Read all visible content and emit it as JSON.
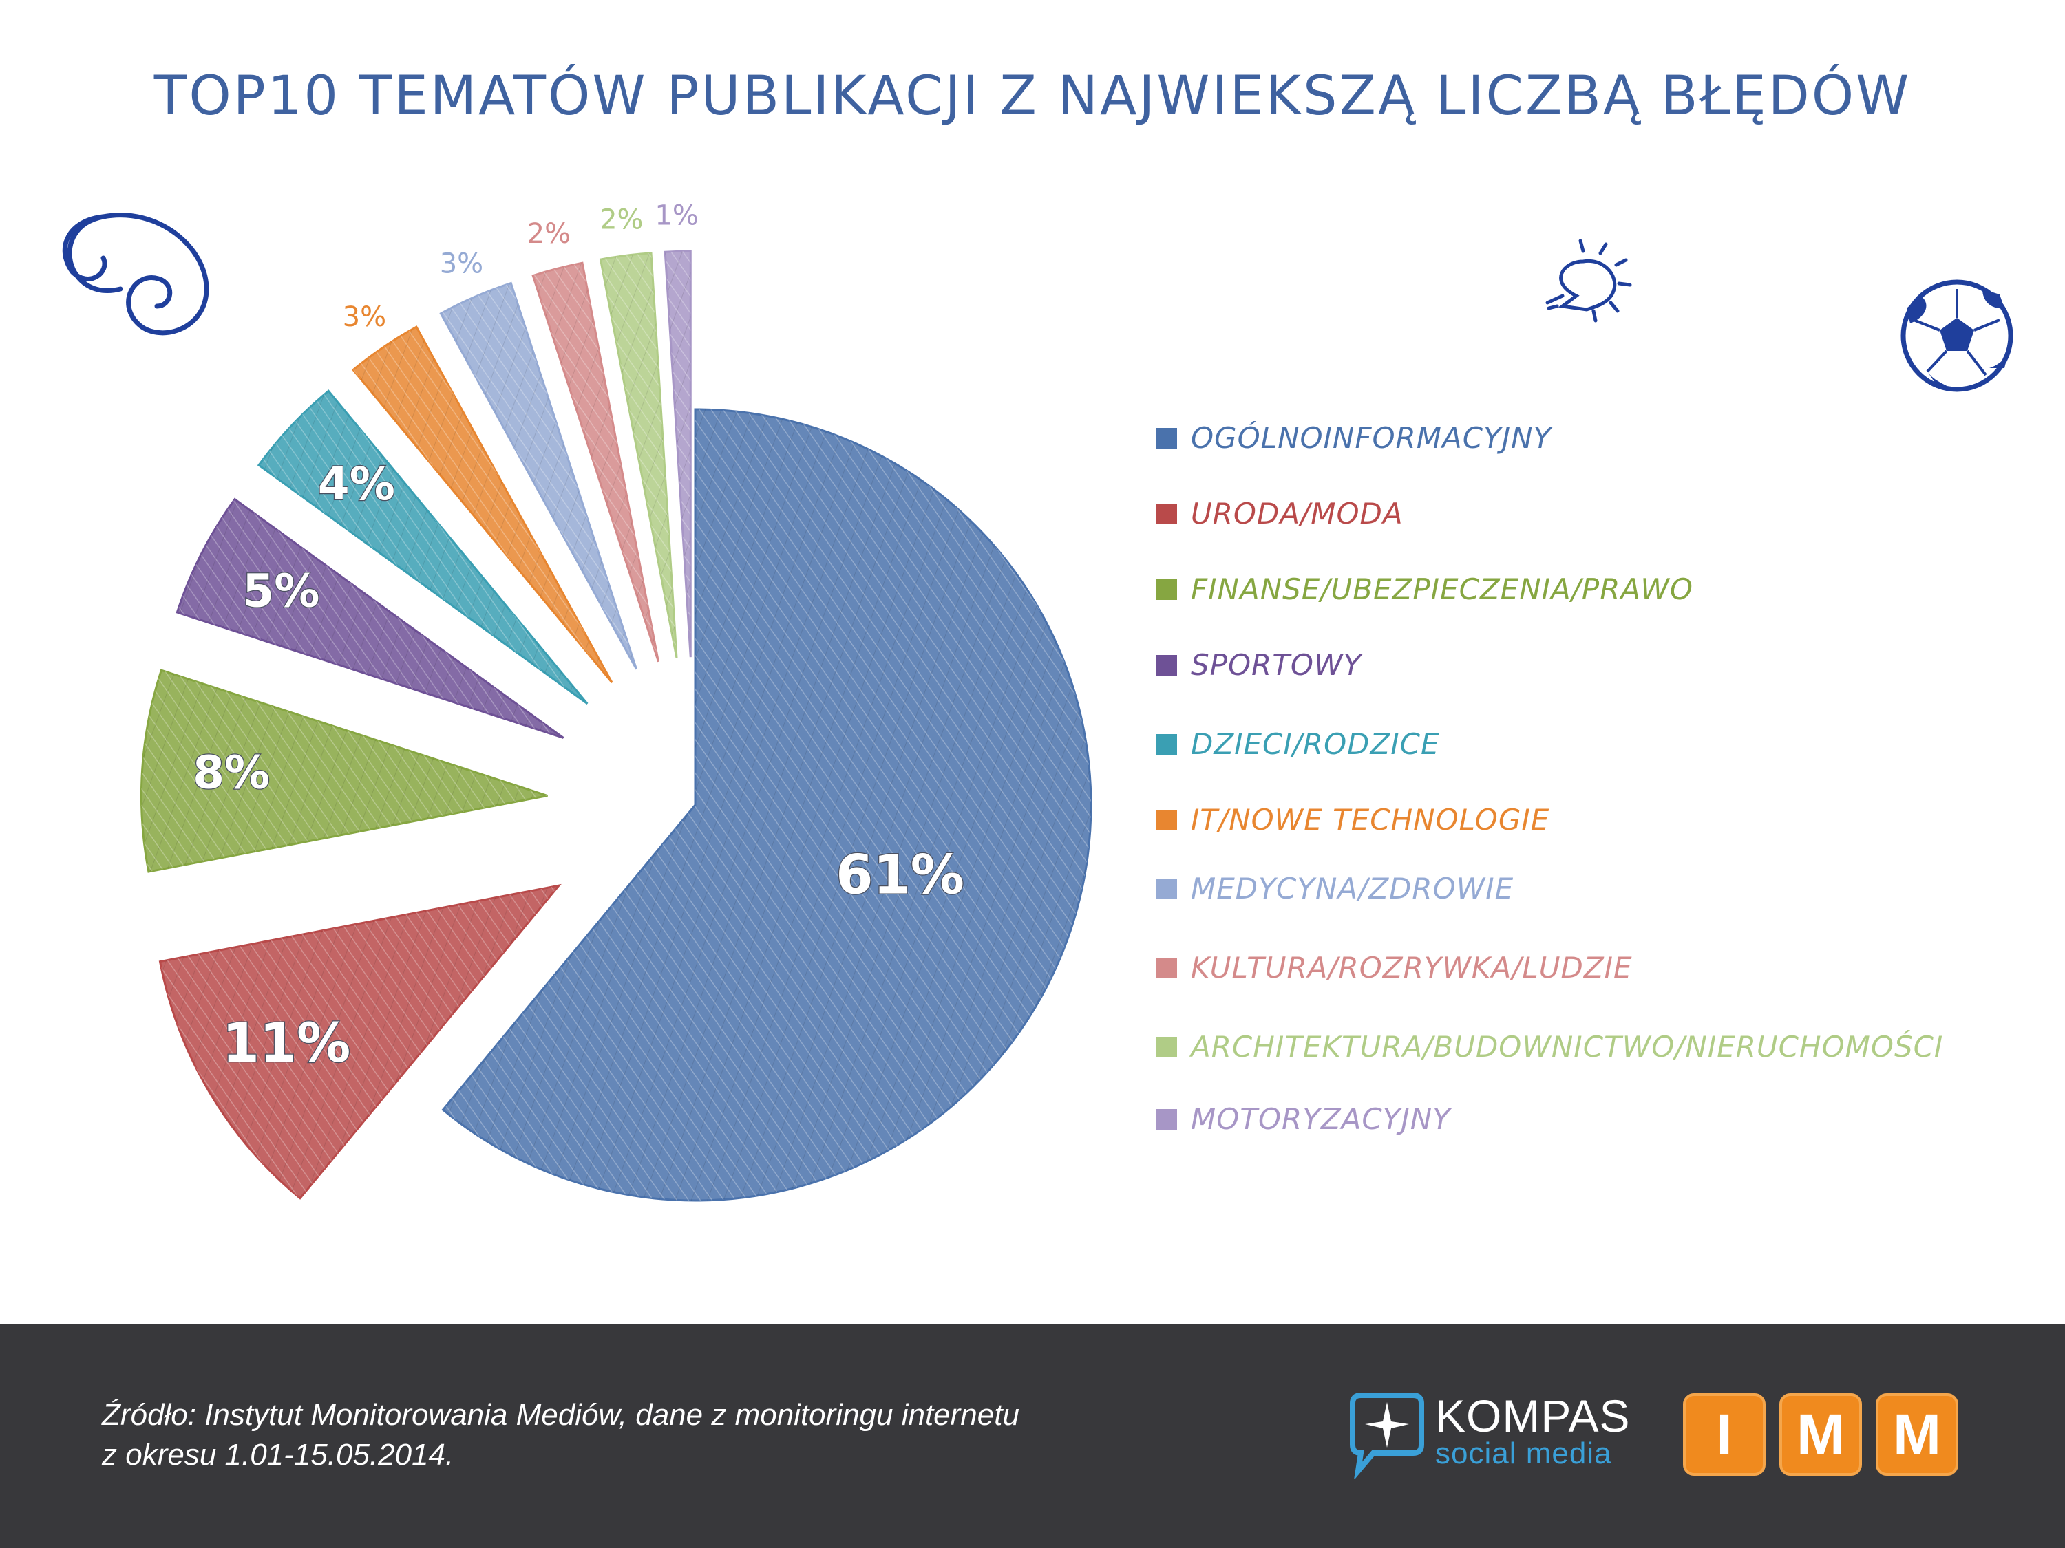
{
  "title": "TOP10 TEMATÓW PUBLIKACJI Z NAJWIEKSZĄ LICZBĄ BŁĘDÓW",
  "chart_data": {
    "type": "pie",
    "title": "TOP10 TEMATÓW PUBLIKACJI Z NAJWIEKSZĄ LICZBĄ BŁĘDÓW",
    "legend_position": "right",
    "slices": [
      {
        "label": "OGÓLNOINFORMACYJNY",
        "value": 61,
        "value_label": "61%",
        "color": "#4a72ac"
      },
      {
        "label": "URODA/MODA",
        "value": 11,
        "value_label": "11%",
        "color": "#b94a4a"
      },
      {
        "label": "FINANSE/UBEZPIECZENIA/PRAWO",
        "value": 8,
        "value_label": "8%",
        "color": "#86a641"
      },
      {
        "label": "SPORTOWY",
        "value": 5,
        "value_label": "5%",
        "color": "#6e5196"
      },
      {
        "label": "DZIECI/RODZICE",
        "value": 4,
        "value_label": "4%",
        "color": "#3a9fb3"
      },
      {
        "label": "IT/NOWE TECHNOLOGIE",
        "value": 3,
        "value_label": "3%",
        "color": "#e88630"
      },
      {
        "label": "MEDYCYNA/ZDROWIE",
        "value": 3,
        "value_label": "3%",
        "color": "#95aad4"
      },
      {
        "label": "KULTURA/ROZRYWKA/LUDZIE",
        "value": 2,
        "value_label": "2%",
        "color": "#d48a8a"
      },
      {
        "label": "ARCHITEKTURA/BUDOWNICTWO/NIERUCHOMOŚCI",
        "value": 2,
        "value_label": "2%",
        "color": "#b0cc86"
      },
      {
        "label": "MOTORYZACYJNY",
        "value": 1,
        "value_label": "1%",
        "color": "#a796c6"
      }
    ]
  },
  "footer": {
    "source_line1": "Źródło: Instytut Monitorowania Mediów, dane z monitoringu internetu",
    "source_line2": "z okresu 1.01-15.05.2014.",
    "kompas_name": "KOMPAS",
    "kompas_sub": "social media",
    "imm_letters": [
      "I",
      "M",
      "M"
    ]
  },
  "icons": [
    "swirl-doodle-icon",
    "lightbulb-doodle-icon",
    "soccer-ball-icon",
    "kompas-logo-icon",
    "imm-logo"
  ]
}
